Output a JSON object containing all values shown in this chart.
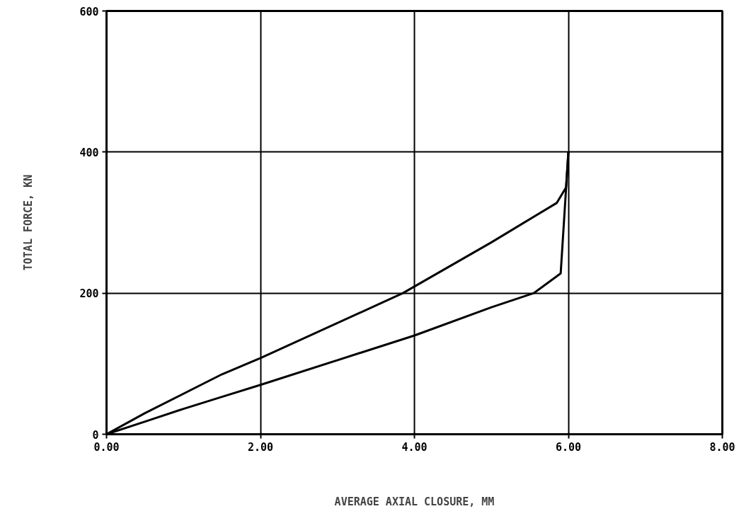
{
  "chart_data": {
    "type": "line",
    "xlabel": "AVERAGE AXIAL CLOSURE, MM",
    "ylabel": "TOTAL FORCE, KN",
    "series": [
      {
        "color": "#000000",
        "x": [
          0,
          0.5,
          1.0,
          1.5,
          2.0,
          3.0,
          4.0,
          5.0,
          5.55,
          5.9,
          6.0
        ],
        "values": [
          0,
          18,
          36,
          53,
          70,
          105,
          140,
          180,
          200,
          228,
          400
        ]
      },
      {
        "color": "#000000",
        "x": [
          6.0,
          5.97,
          5.85,
          5.0,
          3.85,
          2.0,
          1.5,
          0.5,
          0
        ],
        "values": [
          400,
          350,
          328,
          272,
          200,
          108,
          85,
          30,
          0
        ]
      }
    ],
    "xlim": [
      0,
      8
    ],
    "ylim": [
      0,
      600
    ],
    "xticks": [
      {
        "value": 0,
        "label": "0.00"
      },
      {
        "value": 2,
        "label": "2.00"
      },
      {
        "value": 4,
        "label": "4.00"
      },
      {
        "value": 6,
        "label": "6.00"
      },
      {
        "value": 8,
        "label": "8.00"
      }
    ],
    "yticks": [
      0,
      200,
      400,
      600
    ],
    "grid": true
  }
}
